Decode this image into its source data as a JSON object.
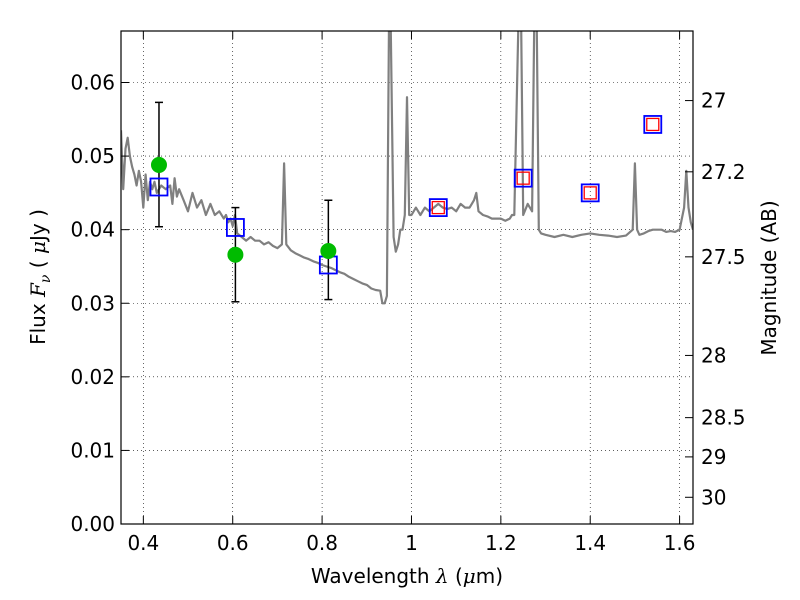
{
  "chart_data": {
    "type": "line",
    "xlabel": {
      "prefix": "Wavelength  ",
      "symbol": "λ",
      "suffix": " (",
      "unit_symbol": "μ",
      "unit_rest": "m)"
    },
    "ylabel": {
      "prefix": "Flux  ",
      "symbol": "F",
      "subscript": "ν",
      "unit_open": "  ( ",
      "unit_symbol": "μ",
      "unit_rest": "Jy )"
    },
    "y2label": "Magnitude (AB)",
    "xlim": [
      0.35,
      1.63
    ],
    "ylim": [
      0.0,
      0.067
    ],
    "grid": true,
    "x_ticks": [
      {
        "value": 0.4,
        "label": "0.4"
      },
      {
        "value": 0.6,
        "label": "0.6"
      },
      {
        "value": 0.8,
        "label": "0.8"
      },
      {
        "value": 1.0,
        "label": "1"
      },
      {
        "value": 1.2,
        "label": "1.2"
      },
      {
        "value": 1.4,
        "label": "1.4"
      },
      {
        "value": 1.6,
        "label": "1.6"
      }
    ],
    "y_ticks": [
      {
        "value": 0.0,
        "label": "0.00"
      },
      {
        "value": 0.01,
        "label": "0.01"
      },
      {
        "value": 0.02,
        "label": "0.02"
      },
      {
        "value": 0.03,
        "label": "0.03"
      },
      {
        "value": 0.04,
        "label": "0.04"
      },
      {
        "value": 0.05,
        "label": "0.05"
      },
      {
        "value": 0.06,
        "label": "0.06"
      }
    ],
    "y2_ticks": [
      {
        "mag": 27,
        "label": "27"
      },
      {
        "mag": 27.2,
        "label": "27.2"
      },
      {
        "mag": 27.5,
        "label": "27.5"
      },
      {
        "mag": 28,
        "label": "28"
      },
      {
        "mag": 28.5,
        "label": "28.5"
      },
      {
        "mag": 29,
        "label": "29"
      },
      {
        "mag": 30,
        "label": "30"
      }
    ],
    "series": [
      {
        "kind": "spectrum",
        "color": "#808080",
        "points": [
          [
            0.35,
            0.0535
          ],
          [
            0.355,
            0.0455
          ],
          [
            0.36,
            0.051
          ],
          [
            0.365,
            0.0525
          ],
          [
            0.37,
            0.05
          ],
          [
            0.375,
            0.0485
          ],
          [
            0.38,
            0.0475
          ],
          [
            0.385,
            0.046
          ],
          [
            0.39,
            0.048
          ],
          [
            0.395,
            0.0465
          ],
          [
            0.4,
            0.043
          ],
          [
            0.405,
            0.0475
          ],
          [
            0.41,
            0.044
          ],
          [
            0.415,
            0.0465
          ],
          [
            0.42,
            0.0455
          ],
          [
            0.425,
            0.0465
          ],
          [
            0.43,
            0.045
          ],
          [
            0.44,
            0.046
          ],
          [
            0.45,
            0.0455
          ],
          [
            0.46,
            0.046
          ],
          [
            0.465,
            0.0435
          ],
          [
            0.47,
            0.047
          ],
          [
            0.475,
            0.0445
          ],
          [
            0.48,
            0.0455
          ],
          [
            0.49,
            0.044
          ],
          [
            0.5,
            0.0425
          ],
          [
            0.51,
            0.045
          ],
          [
            0.52,
            0.043
          ],
          [
            0.53,
            0.044
          ],
          [
            0.54,
            0.042
          ],
          [
            0.55,
            0.0435
          ],
          [
            0.56,
            0.042
          ],
          [
            0.57,
            0.0425
          ],
          [
            0.58,
            0.0415
          ],
          [
            0.585,
            0.042
          ],
          [
            0.59,
            0.041
          ],
          [
            0.595,
            0.0415
          ],
          [
            0.6,
            0.0405
          ],
          [
            0.605,
            0.042
          ],
          [
            0.61,
            0.0395
          ],
          [
            0.62,
            0.039
          ],
          [
            0.63,
            0.0385
          ],
          [
            0.64,
            0.039
          ],
          [
            0.65,
            0.0385
          ],
          [
            0.66,
            0.0385
          ],
          [
            0.67,
            0.038
          ],
          [
            0.68,
            0.0383
          ],
          [
            0.69,
            0.0378
          ],
          [
            0.7,
            0.0375
          ],
          [
            0.71,
            0.038
          ],
          [
            0.715,
            0.049
          ],
          [
            0.72,
            0.038
          ],
          [
            0.73,
            0.0372
          ],
          [
            0.74,
            0.0368
          ],
          [
            0.75,
            0.0365
          ],
          [
            0.76,
            0.0362
          ],
          [
            0.77,
            0.036
          ],
          [
            0.78,
            0.0357
          ],
          [
            0.79,
            0.0355
          ],
          [
            0.8,
            0.0352
          ],
          [
            0.81,
            0.035
          ],
          [
            0.82,
            0.0348
          ],
          [
            0.83,
            0.0345
          ],
          [
            0.84,
            0.0342
          ],
          [
            0.85,
            0.034
          ],
          [
            0.86,
            0.0336
          ],
          [
            0.87,
            0.0333
          ],
          [
            0.88,
            0.033
          ],
          [
            0.89,
            0.0327
          ],
          [
            0.9,
            0.0325
          ],
          [
            0.91,
            0.032
          ],
          [
            0.92,
            0.0318
          ],
          [
            0.93,
            0.0317
          ],
          [
            0.935,
            0.03
          ],
          [
            0.94,
            0.03
          ],
          [
            0.945,
            0.031
          ],
          [
            0.95,
            0.07
          ],
          [
            0.953,
            0.07
          ],
          [
            0.96,
            0.039
          ],
          [
            0.965,
            0.037
          ],
          [
            0.97,
            0.038
          ],
          [
            0.975,
            0.04
          ],
          [
            0.98,
            0.04
          ],
          [
            0.985,
            0.042
          ],
          [
            0.99,
            0.058
          ],
          [
            0.995,
            0.042
          ],
          [
            1.0,
            0.042
          ],
          [
            1.01,
            0.043
          ],
          [
            1.02,
            0.042
          ],
          [
            1.03,
            0.043
          ],
          [
            1.04,
            0.0425
          ],
          [
            1.05,
            0.043
          ],
          [
            1.06,
            0.0435
          ],
          [
            1.07,
            0.043
          ],
          [
            1.08,
            0.0428
          ],
          [
            1.09,
            0.043
          ],
          [
            1.1,
            0.0425
          ],
          [
            1.11,
            0.0435
          ],
          [
            1.12,
            0.043
          ],
          [
            1.13,
            0.043
          ],
          [
            1.14,
            0.044
          ],
          [
            1.145,
            0.045
          ],
          [
            1.15,
            0.0425
          ],
          [
            1.16,
            0.042
          ],
          [
            1.17,
            0.0418
          ],
          [
            1.18,
            0.0415
          ],
          [
            1.19,
            0.0415
          ],
          [
            1.2,
            0.0415
          ],
          [
            1.21,
            0.0412
          ],
          [
            1.22,
            0.0415
          ],
          [
            1.225,
            0.042
          ],
          [
            1.23,
            0.042
          ],
          [
            1.24,
            0.07
          ],
          [
            1.245,
            0.07
          ],
          [
            1.25,
            0.042
          ],
          [
            1.26,
            0.0435
          ],
          [
            1.265,
            0.043
          ],
          [
            1.27,
            0.0425
          ],
          [
            1.275,
            0.07
          ],
          [
            1.28,
            0.07
          ],
          [
            1.285,
            0.04
          ],
          [
            1.29,
            0.0395
          ],
          [
            1.3,
            0.0393
          ],
          [
            1.32,
            0.039
          ],
          [
            1.34,
            0.0393
          ],
          [
            1.36,
            0.039
          ],
          [
            1.38,
            0.0393
          ],
          [
            1.4,
            0.0395
          ],
          [
            1.42,
            0.0393
          ],
          [
            1.44,
            0.0392
          ],
          [
            1.46,
            0.039
          ],
          [
            1.48,
            0.0392
          ],
          [
            1.495,
            0.04
          ],
          [
            1.5,
            0.049
          ],
          [
            1.505,
            0.04
          ],
          [
            1.51,
            0.0393
          ],
          [
            1.52,
            0.0395
          ],
          [
            1.53,
            0.0398
          ],
          [
            1.54,
            0.04
          ],
          [
            1.55,
            0.04
          ],
          [
            1.56,
            0.04
          ],
          [
            1.57,
            0.0397
          ],
          [
            1.58,
            0.0398
          ],
          [
            1.59,
            0.0397
          ],
          [
            1.6,
            0.04
          ],
          [
            1.61,
            0.043
          ],
          [
            1.615,
            0.048
          ],
          [
            1.62,
            0.043
          ],
          [
            1.625,
            0.041
          ],
          [
            1.63,
            0.04
          ]
        ]
      },
      {
        "kind": "observed",
        "color": "#00bb00",
        "points": [
          {
            "x": 0.435,
            "y": 0.0488,
            "err_low": 0.0404,
            "err_high": 0.0573
          },
          {
            "x": 0.606,
            "y": 0.0366,
            "err_low": 0.0302,
            "err_high": 0.043
          },
          {
            "x": 0.814,
            "y": 0.0371,
            "err_low": 0.0305,
            "err_high": 0.044
          }
        ]
      },
      {
        "kind": "model_bandpass",
        "color": "#0000ff",
        "points": [
          {
            "x": 0.435,
            "y": 0.0458
          },
          {
            "x": 0.606,
            "y": 0.0403
          },
          {
            "x": 0.814,
            "y": 0.0352
          },
          {
            "x": 1.06,
            "y": 0.043
          },
          {
            "x": 1.25,
            "y": 0.047
          },
          {
            "x": 1.4,
            "y": 0.045
          },
          {
            "x": 1.54,
            "y": 0.0543
          }
        ]
      },
      {
        "kind": "model_inner",
        "color": "#ff0000",
        "points": [
          {
            "x": 1.06,
            "y": 0.043
          },
          {
            "x": 1.25,
            "y": 0.047
          },
          {
            "x": 1.4,
            "y": 0.045
          },
          {
            "x": 1.54,
            "y": 0.0543
          }
        ]
      }
    ]
  }
}
